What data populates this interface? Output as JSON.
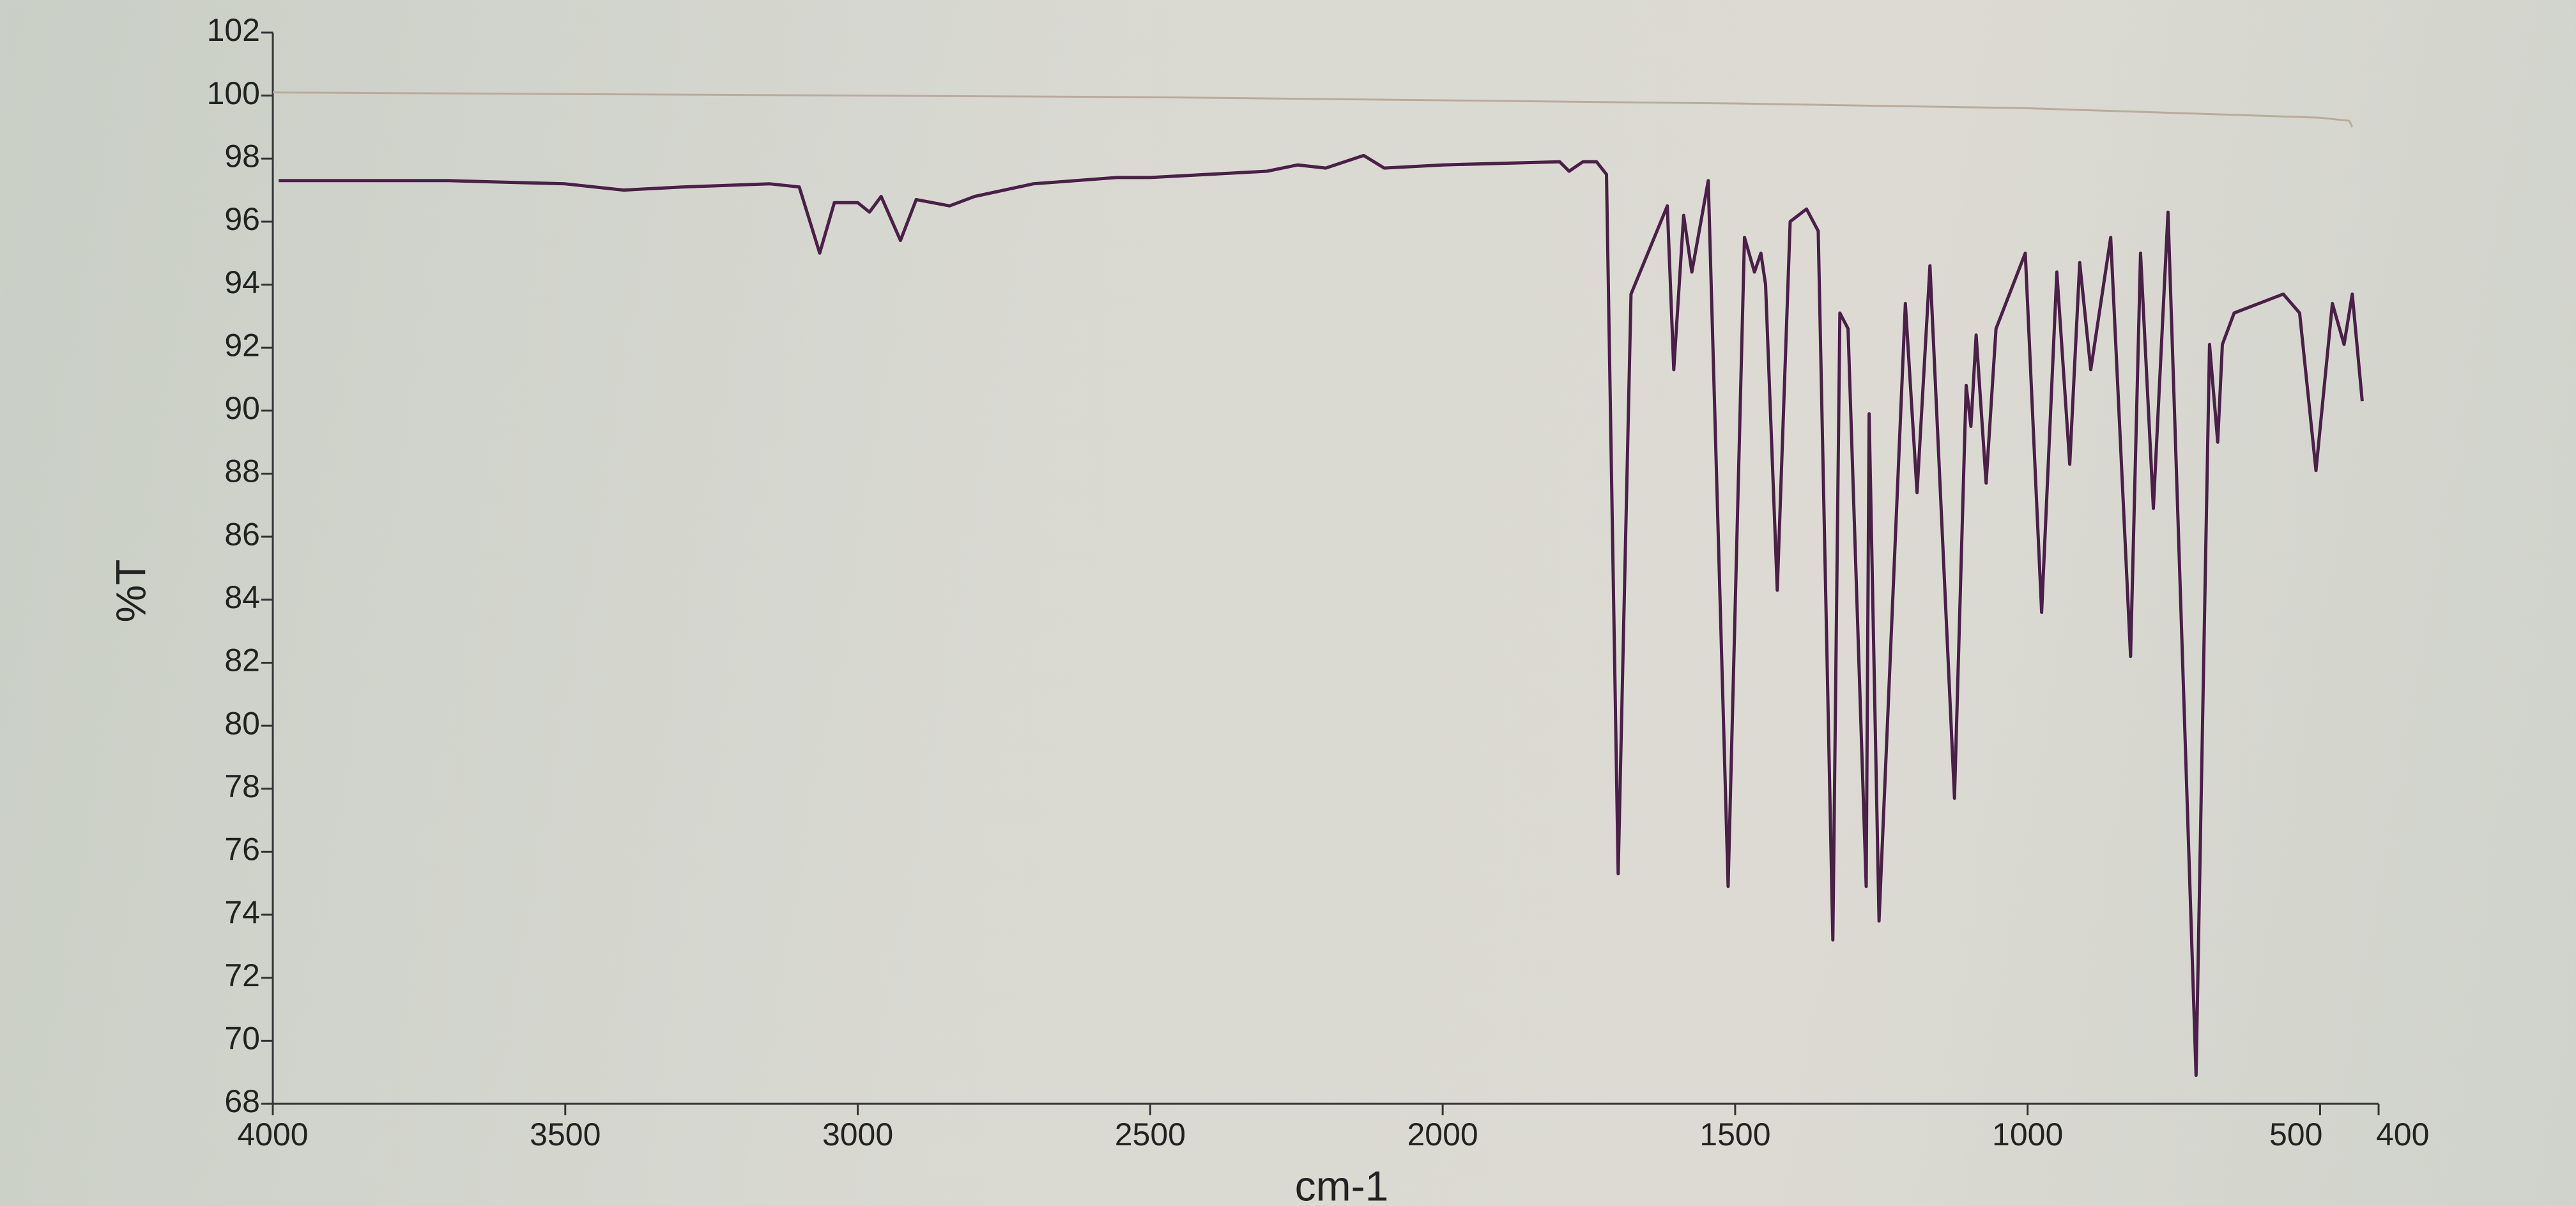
{
  "chart_data": {
    "type": "line",
    "xlabel": "cm-1",
    "ylabel": "%T",
    "xlim": [
      4000,
      400
    ],
    "xticks": [
      4000,
      3500,
      3000,
      2500,
      2000,
      1500,
      1000,
      500,
      400
    ],
    "ylim": [
      68,
      102
    ],
    "yticks": [
      68,
      70,
      72,
      74,
      76,
      78,
      80,
      82,
      84,
      86,
      88,
      90,
      92,
      94,
      96,
      98,
      100,
      102
    ],
    "grid": false,
    "series": [
      {
        "color": "#b9ab9c",
        "x": [
          4000,
          3500,
          3000,
          2500,
          2000,
          1500,
          1000,
          500,
          450,
          445
        ],
        "values": [
          100.1,
          100.05,
          100.0,
          99.95,
          99.85,
          99.75,
          99.6,
          99.3,
          99.2,
          99.0
        ]
      },
      {
        "color": "#4a1f48",
        "x": [
          3990,
          3700,
          3500,
          3400,
          3300,
          3150,
          3100,
          3065,
          3040,
          3000,
          2980,
          2960,
          2927,
          2900,
          2843,
          2800,
          2700,
          2557,
          2500,
          2300,
          2248,
          2200,
          2135,
          2100,
          2000,
          1800,
          1784,
          1760,
          1737,
          1720,
          1700,
          1678,
          1616,
          1605,
          1588,
          1574,
          1546,
          1512,
          1484,
          1467,
          1456,
          1448,
          1428,
          1406,
          1378,
          1358,
          1333,
          1321,
          1307,
          1276,
          1271,
          1254,
          1209,
          1189,
          1167,
          1125,
          1105,
          1097,
          1088,
          1071,
          1054,
          1004,
          976,
          950,
          928,
          911,
          892,
          858,
          824,
          807,
          785,
          760,
          712,
          689,
          675,
          667,
          647,
          563,
          535,
          507,
          479,
          459,
          445,
          428
        ],
        "values": [
          97.3,
          97.3,
          97.2,
          97.0,
          97.1,
          97.2,
          97.1,
          95.0,
          96.6,
          96.6,
          96.3,
          96.8,
          95.4,
          96.7,
          96.5,
          96.8,
          97.2,
          97.4,
          97.4,
          97.6,
          97.8,
          97.7,
          98.1,
          97.7,
          97.8,
          97.9,
          97.6,
          97.9,
          97.9,
          97.5,
          75.3,
          93.7,
          96.5,
          91.3,
          96.2,
          94.4,
          97.3,
          74.9,
          95.5,
          94.4,
          95.0,
          94.0,
          84.3,
          96.0,
          96.4,
          95.7,
          73.2,
          93.1,
          92.6,
          74.9,
          89.9,
          73.8,
          93.4,
          87.4,
          94.6,
          77.7,
          90.8,
          89.5,
          92.4,
          87.7,
          92.6,
          95.0,
          83.6,
          94.4,
          88.3,
          94.7,
          91.3,
          95.5,
          82.2,
          95.0,
          86.9,
          96.3,
          68.9,
          92.1,
          89.0,
          92.1,
          93.1,
          93.7,
          93.1,
          88.1,
          93.4,
          92.1,
          93.7,
          90.3
        ]
      }
    ]
  }
}
